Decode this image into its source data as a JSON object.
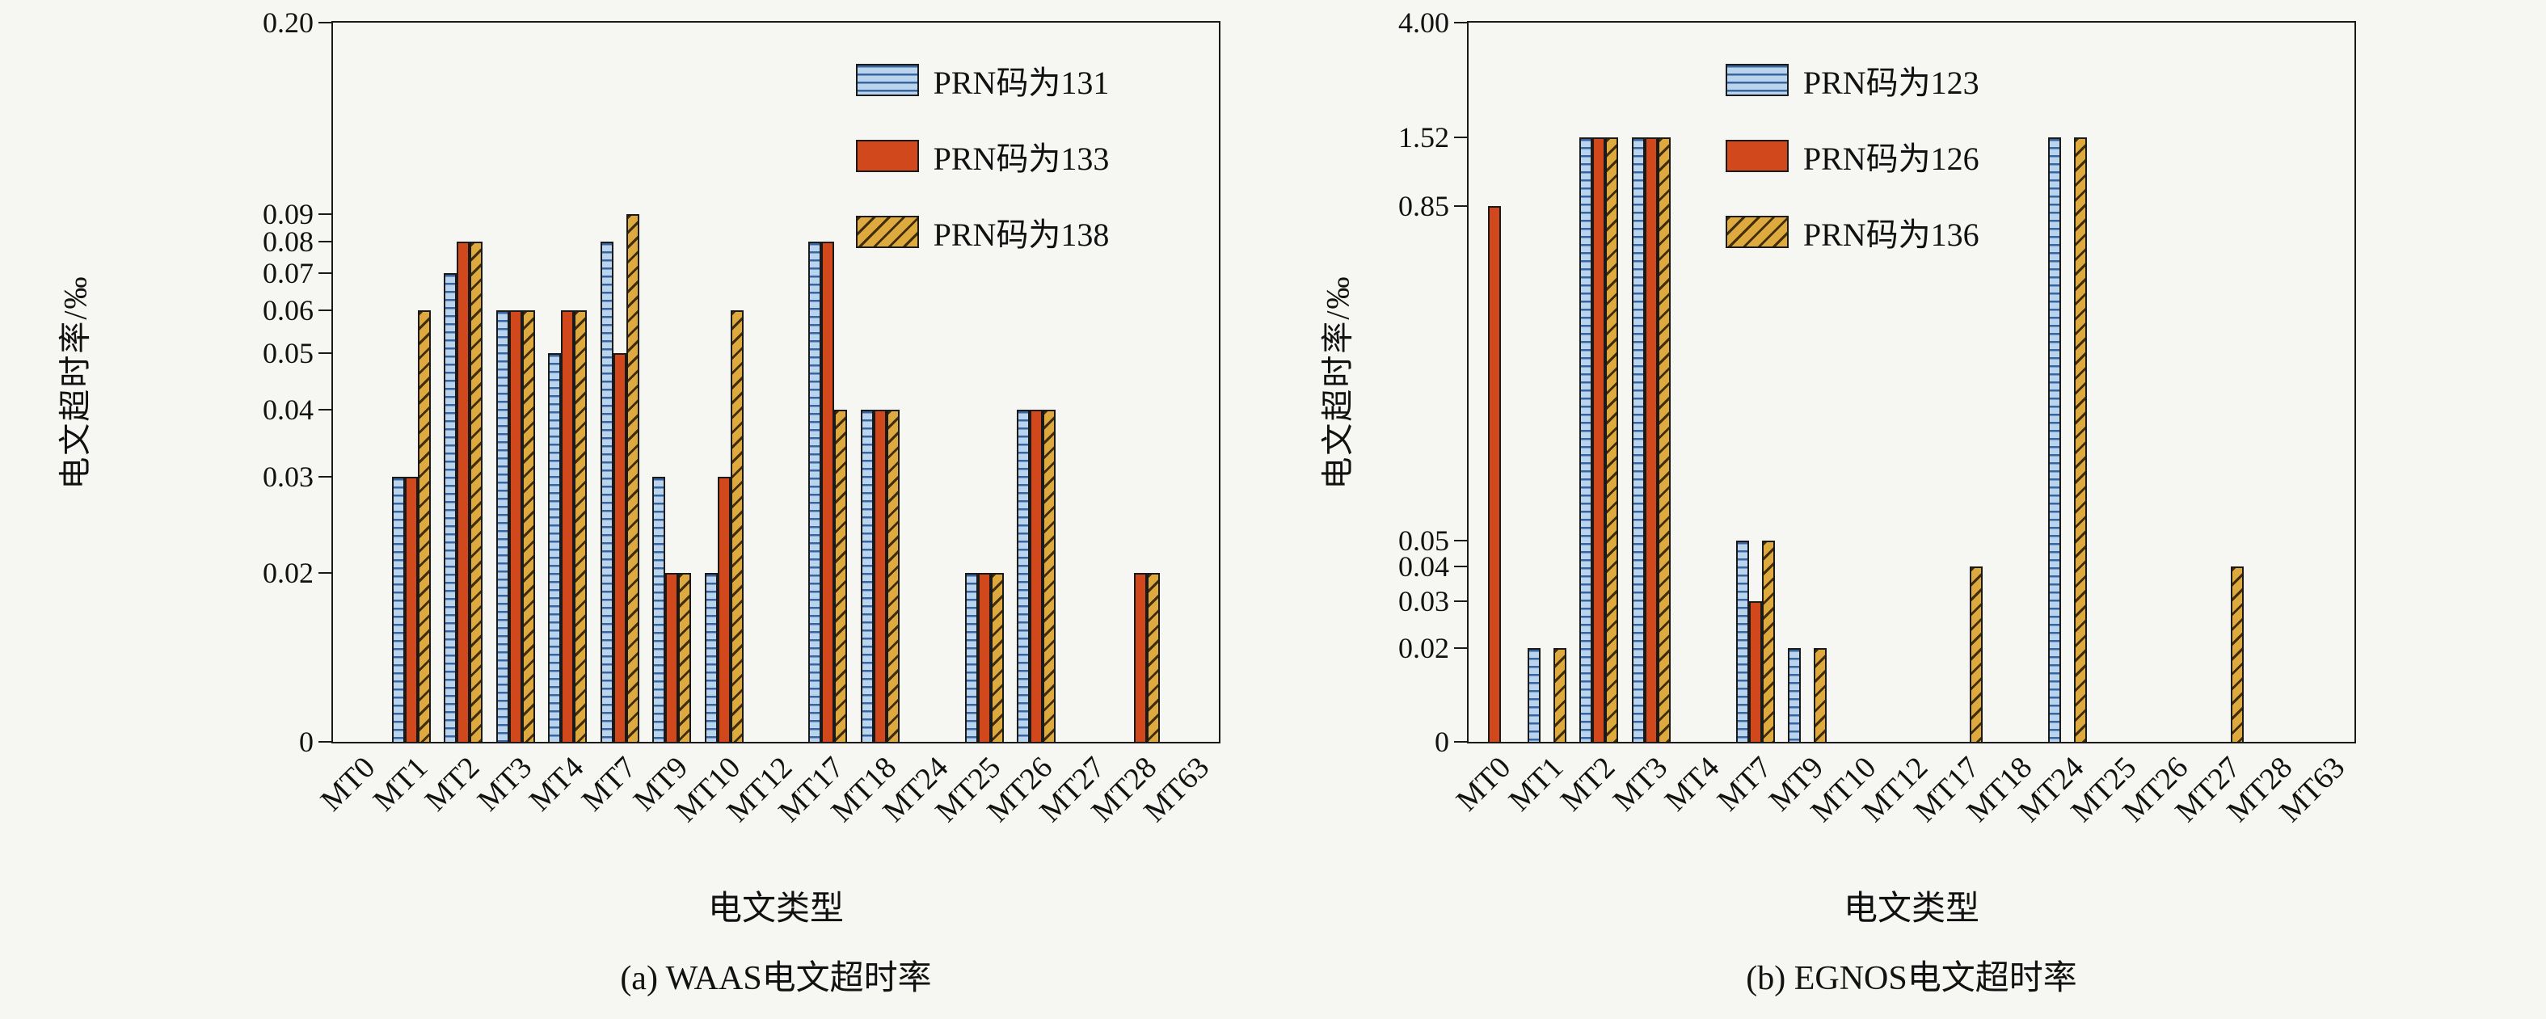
{
  "page": {
    "background": "#f6f6f3",
    "text_color": "#111111"
  },
  "chart_data": [
    {
      "type": "bar",
      "caption": "(a) WAAS电文超时率",
      "ylabel": "电文超时率/‰",
      "xlabel": "电文类型",
      "y_scale": "broken-log",
      "ylim": [
        0,
        0.2
      ],
      "grid": false,
      "legend_position": "inside-upper-right",
      "legend_left_pct": 59,
      "yticks": [
        {
          "value": 0,
          "label": "0",
          "pos": 0
        },
        {
          "value": 0.02,
          "label": "0.02",
          "pos": 0.235
        },
        {
          "value": 0.03,
          "label": "0.03",
          "pos": 0.369
        },
        {
          "value": 0.04,
          "label": "0.04",
          "pos": 0.462
        },
        {
          "value": 0.05,
          "label": "0.05",
          "pos": 0.54
        },
        {
          "value": 0.06,
          "label": "0.06",
          "pos": 0.6
        },
        {
          "value": 0.07,
          "label": "0.07",
          "pos": 0.652
        },
        {
          "value": 0.08,
          "label": "0.08",
          "pos": 0.695
        },
        {
          "value": 0.09,
          "label": "0.09",
          "pos": 0.734
        },
        {
          "value": 0.2,
          "label": "0.20",
          "pos": 1.0
        }
      ],
      "categories": [
        "MT0",
        "MT1",
        "MT2",
        "MT3",
        "MT4",
        "MT7",
        "MT9",
        "MT10",
        "MT12",
        "MT17",
        "MT18",
        "MT24",
        "MT25",
        "MT26",
        "MT27",
        "MT28",
        "MT63"
      ],
      "series": [
        {
          "name": "PRN码为131",
          "pattern": "horizontal-lines",
          "fill": "#b9d4ec",
          "values": [
            0,
            0.03,
            0.07,
            0.06,
            0.05,
            0.08,
            0.03,
            0.02,
            0,
            0.08,
            0.04,
            0,
            0.02,
            0.04,
            0,
            0,
            0
          ]
        },
        {
          "name": "PRN码为133",
          "pattern": "solid",
          "fill": "#d2481d",
          "values": [
            0,
            0.03,
            0.08,
            0.06,
            0.06,
            0.05,
            0.02,
            0.03,
            0,
            0.08,
            0.04,
            0,
            0.02,
            0.04,
            0,
            0.02,
            0
          ]
        },
        {
          "name": "PRN码为138",
          "pattern": "diagonal-lines",
          "fill": "#dea93f",
          "values": [
            0,
            0.06,
            0.08,
            0.06,
            0.06,
            0.09,
            0.02,
            0.06,
            0,
            0.04,
            0.04,
            0,
            0.02,
            0.04,
            0,
            0.02,
            0
          ]
        }
      ]
    },
    {
      "type": "bar",
      "caption": "(b) EGNOS电文超时率",
      "ylabel": "电文超时率/‰",
      "xlabel": "电文类型",
      "y_scale": "broken-log",
      "ylim": [
        0,
        4.0
      ],
      "grid": false,
      "legend_position": "inside-upper-center",
      "legend_left_pct": 29,
      "yticks": [
        {
          "value": 0,
          "label": "0",
          "pos": 0
        },
        {
          "value": 0.02,
          "label": "0.02",
          "pos": 0.13
        },
        {
          "value": 0.03,
          "label": "0.03",
          "pos": 0.196
        },
        {
          "value": 0.04,
          "label": "0.04",
          "pos": 0.244
        },
        {
          "value": 0.05,
          "label": "0.05",
          "pos": 0.28
        },
        {
          "value": 0.85,
          "label": "0.85",
          "pos": 0.745
        },
        {
          "value": 1.52,
          "label": "1.52",
          "pos": 0.841
        },
        {
          "value": 4.0,
          "label": "4.00",
          "pos": 1.0
        }
      ],
      "categories": [
        "MT0",
        "MT1",
        "MT2",
        "MT3",
        "MT4",
        "MT7",
        "MT9",
        "MT10",
        "MT12",
        "MT17",
        "MT18",
        "MT24",
        "MT25",
        "MT26",
        "MT27",
        "MT28",
        "MT63"
      ],
      "series": [
        {
          "name": "PRN码为123",
          "pattern": "horizontal-lines",
          "fill": "#b9d4ec",
          "values": [
            0,
            0.02,
            1.52,
            1.52,
            0,
            0.05,
            0.02,
            0,
            0,
            0,
            0,
            1.52,
            0,
            0,
            0,
            0,
            0
          ]
        },
        {
          "name": "PRN码为126",
          "pattern": "solid",
          "fill": "#d2481d",
          "values": [
            0.85,
            0,
            1.52,
            1.52,
            0,
            0.03,
            0,
            0,
            0,
            0,
            0,
            0,
            0,
            0,
            0,
            0,
            0
          ]
        },
        {
          "name": "PRN码为136",
          "pattern": "diagonal-lines",
          "fill": "#dea93f",
          "values": [
            0,
            0.02,
            1.52,
            1.52,
            0,
            0.05,
            0.02,
            0,
            0,
            0.04,
            0,
            1.52,
            0,
            0,
            0.04,
            0,
            0
          ]
        }
      ]
    }
  ]
}
